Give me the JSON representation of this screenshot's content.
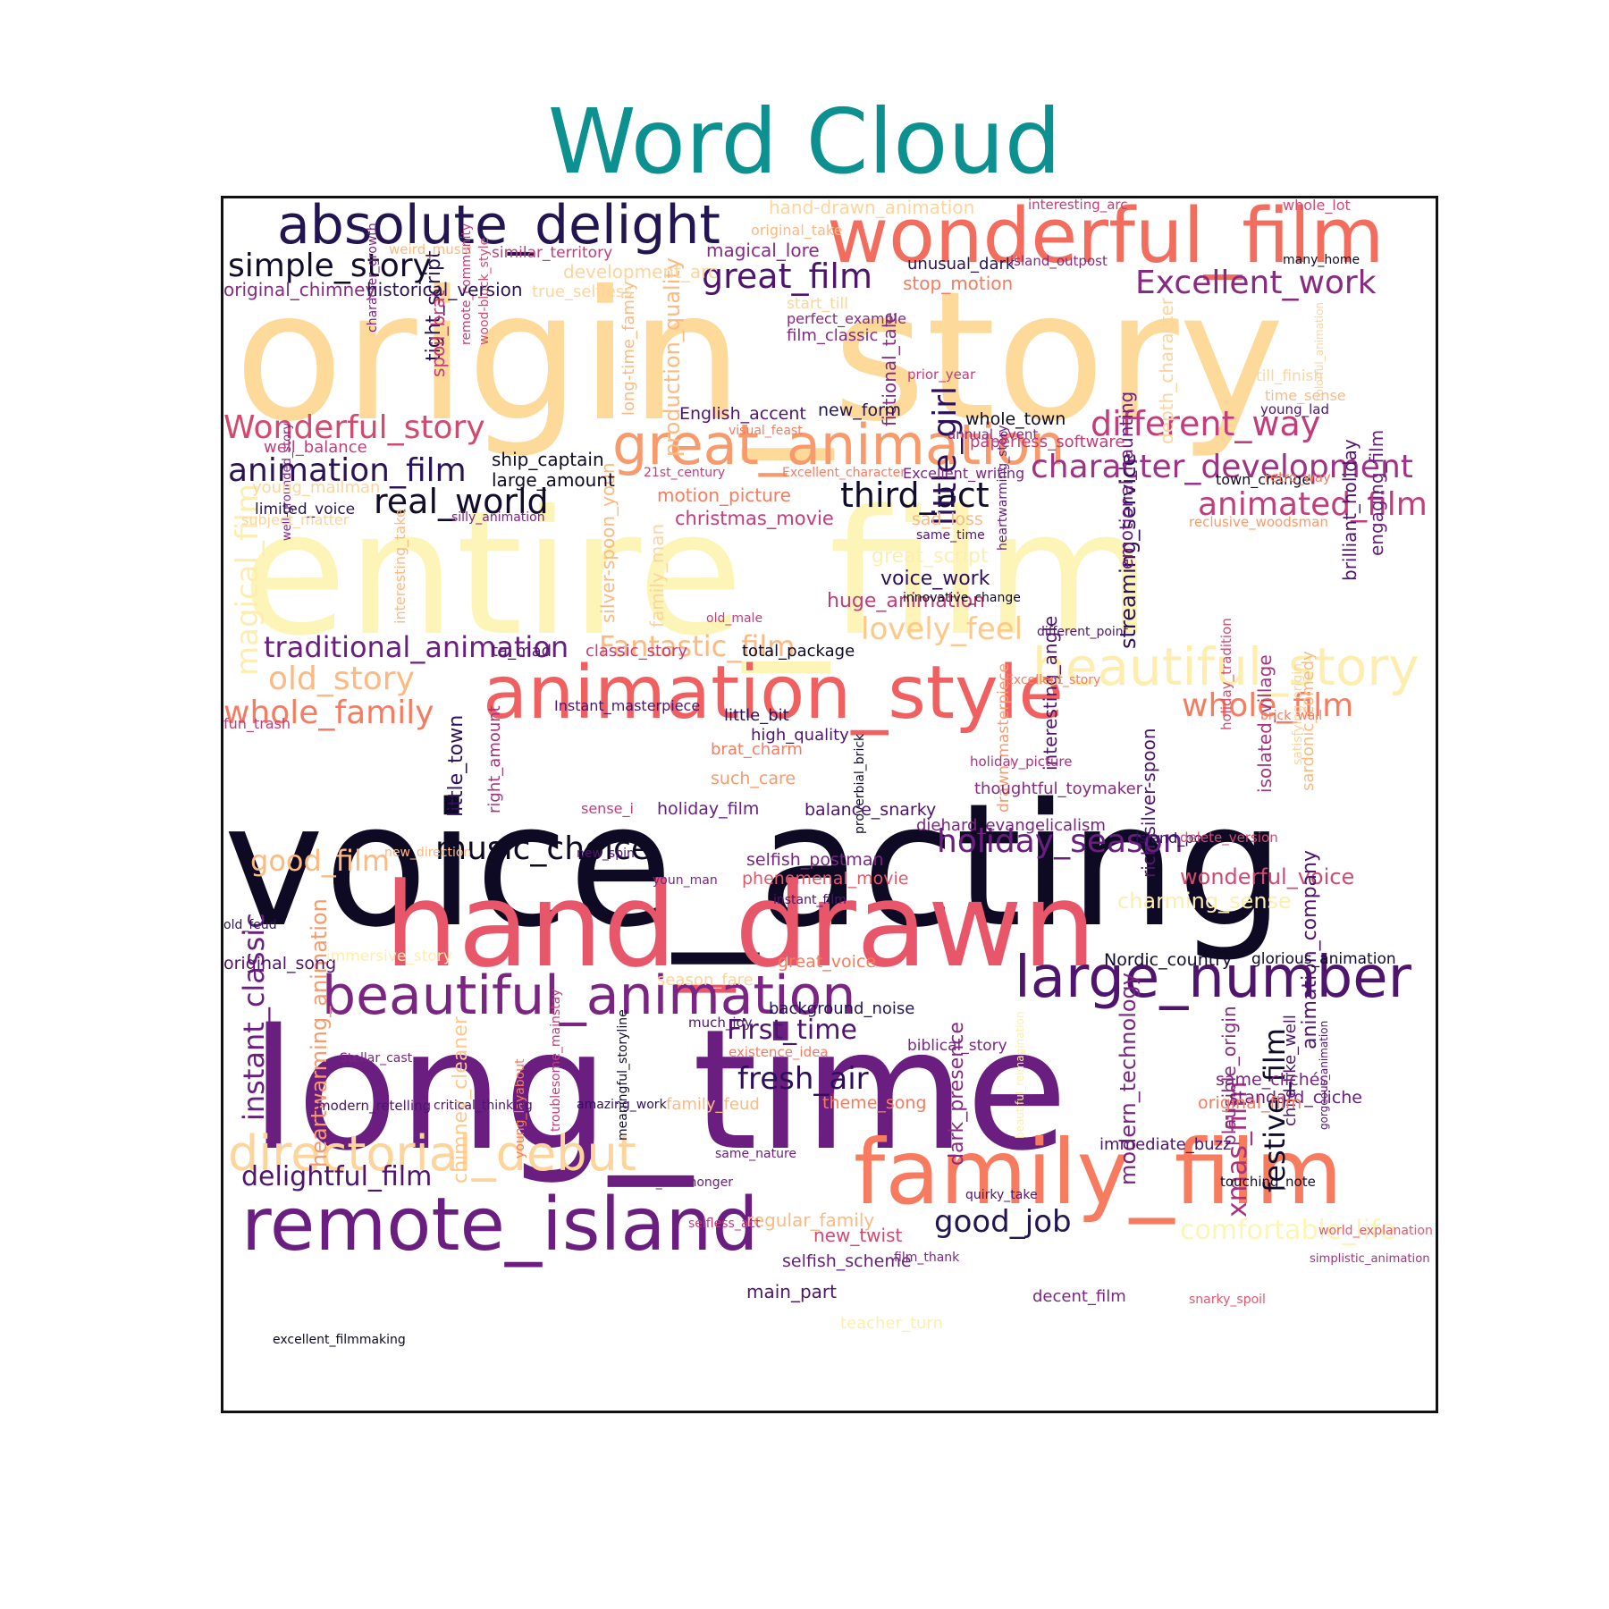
{
  "title": "Word Cloud",
  "palette": {
    "title_color": "#0c9090",
    "frame_color": "#111111"
  },
  "words": [
    {
      "text": "origin_story",
      "weight": 1.0,
      "color": "#fdd99a"
    },
    {
      "text": "entire_film",
      "weight": 0.97,
      "color": "#fcf5b7"
    },
    {
      "text": "voice_acting",
      "weight": 0.95,
      "color": "#0e0a23"
    },
    {
      "text": "long_time",
      "weight": 0.93,
      "color": "#6a1f80"
    },
    {
      "text": "hand_drawn",
      "weight": 0.72,
      "color": "#e8566a"
    },
    {
      "text": "family_film",
      "weight": 0.55,
      "color": "#f77b5e"
    },
    {
      "text": "wonderful_film",
      "weight": 0.52,
      "color": "#f26d5d"
    },
    {
      "text": "animation_style",
      "weight": 0.48,
      "color": "#f06060"
    },
    {
      "text": "remote_island",
      "weight": 0.5,
      "color": "#6a1f80"
    },
    {
      "text": "large_number",
      "weight": 0.46,
      "color": "#4f146e"
    },
    {
      "text": "beautiful_animation",
      "weight": 0.44,
      "color": "#7a2582"
    },
    {
      "text": "absolute_delight",
      "weight": 0.44,
      "color": "#231551"
    },
    {
      "text": "great_animation",
      "weight": 0.43,
      "color": "#f89a6c"
    },
    {
      "text": "beautiful_story",
      "weight": 0.42,
      "color": "#fdeeb0"
    },
    {
      "text": "directorial_debut",
      "weight": 0.4,
      "color": "#fdd499"
    },
    {
      "text": "simple_story",
      "weight": 0.3,
      "color": "#120c2b"
    },
    {
      "text": "Wonderful_story",
      "weight": 0.3,
      "color": "#d24a6e"
    },
    {
      "text": "Excellent_work",
      "weight": 0.29,
      "color": "#872a81"
    },
    {
      "text": "different_way",
      "weight": 0.3,
      "color": "#c23d7a"
    },
    {
      "text": "character_development",
      "weight": 0.31,
      "color": "#9e3285"
    },
    {
      "text": "animated_film",
      "weight": 0.29,
      "color": "#c23d7a"
    },
    {
      "text": "animation_film",
      "weight": 0.29,
      "color": "#2a1454"
    },
    {
      "text": "real_world",
      "weight": 0.3,
      "color": "#110c2c"
    },
    {
      "text": "third_act",
      "weight": 0.3,
      "color": "#110c2c"
    },
    {
      "text": "great_film",
      "weight": 0.3,
      "color": "#4f146e"
    },
    {
      "text": "little_girl",
      "weight": 0.3,
      "color": "#2e0f5c"
    },
    {
      "text": "lovely_feel",
      "weight": 0.27,
      "color": "#fdc88a"
    },
    {
      "text": "Fantastic_film",
      "weight": 0.25,
      "color": "#fcb981"
    },
    {
      "text": "traditional_animation",
      "weight": 0.26,
      "color": "#6a1f80"
    },
    {
      "text": "old_story",
      "weight": 0.28,
      "color": "#fcb981"
    },
    {
      "text": "whole_family",
      "weight": 0.28,
      "color": "#f77b5e"
    },
    {
      "text": "whole_film",
      "weight": 0.29,
      "color": "#f77b5e"
    },
    {
      "text": "music_choice",
      "weight": 0.28,
      "color": "#0e0a23"
    },
    {
      "text": "holiday_season",
      "weight": 0.28,
      "color": "#6a1f80"
    },
    {
      "text": "good_film",
      "weight": 0.25,
      "color": "#fcb981"
    },
    {
      "text": "instant_classic",
      "weight": 0.27,
      "color": "#6a1f80"
    },
    {
      "text": "festive_film",
      "weight": 0.26,
      "color": "#110c2c"
    },
    {
      "text": "xmas_film",
      "weight": 0.26,
      "color": "#a8327e"
    },
    {
      "text": "fresh_air",
      "weight": 0.28,
      "color": "#2e0f5c"
    },
    {
      "text": "First_time",
      "weight": 0.25,
      "color": "#4f146e"
    },
    {
      "text": "delightful_film",
      "weight": 0.25,
      "color": "#4f146e"
    },
    {
      "text": "good_job",
      "weight": 0.27,
      "color": "#231551"
    },
    {
      "text": "comfortable_life",
      "weight": 0.25,
      "color": "#fcf5b7"
    },
    {
      "text": "wonderful_voice",
      "weight": 0.2,
      "color": "#d24a6e"
    },
    {
      "text": "charming_sense",
      "weight": 0.2,
      "color": "#fdeeb0"
    },
    {
      "text": "magical_film",
      "weight": 0.27,
      "color": "#fdeeb0"
    },
    {
      "text": "production_quality",
      "weight": 0.2,
      "color": "#fcb981"
    },
    {
      "text": "streaming_service",
      "weight": 0.2,
      "color": "#2e0f5c"
    },
    {
      "text": "heartwarming_animation",
      "weight": 0.2,
      "color": "#f89a6c"
    },
    {
      "text": "modern_technology",
      "weight": 0.2,
      "color": "#7a2582"
    },
    {
      "text": "animation_company",
      "weight": 0.18,
      "color": "#4f146e"
    },
    {
      "text": "chimney_cleaner",
      "weight": 0.18,
      "color": "#fdc88a"
    },
    {
      "text": "plausible_origin",
      "weight": 0.18,
      "color": "#872a81"
    },
    {
      "text": "dark_presence",
      "weight": 0.17,
      "color": "#872a81"
    },
    {
      "text": "engaging_film",
      "weight": 0.17,
      "color": "#6a1f80"
    },
    {
      "text": "brilliant_holiday",
      "weight": 0.17,
      "color": "#4f146e"
    },
    {
      "text": "emotional_haunting",
      "weight": 0.15,
      "color": "#6a1f80"
    },
    {
      "text": "fictional_tale",
      "weight": 0.17,
      "color": "#872a81"
    },
    {
      "text": "long-time_family",
      "weight": 0.15,
      "color": "#fcb981"
    },
    {
      "text": "tight_script",
      "weight": 0.17,
      "color": "#2a1454"
    },
    {
      "text": "spoil_brat",
      "weight": 0.17,
      "color": "#c23d7a"
    },
    {
      "text": "depth_character",
      "weight": 0.15,
      "color": "#fdd49c"
    },
    {
      "text": "interesting_angle",
      "weight": 0.15,
      "color": "#4f146e"
    },
    {
      "text": "rich_silver-spoon",
      "weight": 0.15,
      "color": "#4f146e"
    },
    {
      "text": "isolated_village",
      "weight": 0.15,
      "color": "#a8327e"
    },
    {
      "text": "sardonic_comedy",
      "weight": 0.15,
      "color": "#fcb981"
    },
    {
      "text": "silver-spoon_youn",
      "weight": 0.15,
      "color": "#fcb981"
    },
    {
      "text": "family_man",
      "weight": 0.15,
      "color": "#fdd49c"
    },
    {
      "text": "interesting_take",
      "weight": 0.13,
      "color": "#fcb981"
    },
    {
      "text": "little_town",
      "weight": 0.15,
      "color": "#2e0f5c"
    },
    {
      "text": "right_amount",
      "weight": 0.13,
      "color": "#a8327e"
    },
    {
      "text": "drawn_masterpiece",
      "weight": 0.13,
      "color": "#f89a6c"
    },
    {
      "text": "heartwarming_story",
      "weight": 0.12,
      "color": "#6a1f80"
    },
    {
      "text": "holiday_tradition",
      "weight": 0.11,
      "color": "#d24a6e"
    },
    {
      "text": "troublesome_mainstay",
      "weight": 0.12,
      "color": "#c23d7a"
    },
    {
      "text": "meaningful_storyline",
      "weight": 0.12,
      "color": "#110c2c"
    },
    {
      "text": "young_layabout",
      "weight": 0.12,
      "color": "#f77b5e"
    },
    {
      "text": "child-like_well",
      "weight": 0.13,
      "color": "#4f146e"
    },
    {
      "text": "gorgeous_animation",
      "weight": 0.1,
      "color": "#4f146e"
    },
    {
      "text": "beautiful_reimagination",
      "weight": 0.1,
      "color": "#fdeeb0"
    },
    {
      "text": "character_growth",
      "weight": 0.1,
      "color": "#7a2582"
    },
    {
      "text": "remote_community",
      "weight": 0.1,
      "color": "#c23d7a"
    },
    {
      "text": "wood-block_style",
      "weight": 0.1,
      "color": "#d24a6e"
    },
    {
      "text": "well-grounded_story",
      "weight": 0.1,
      "color": "#7a2582"
    },
    {
      "text": "proverbial_brick",
      "weight": 0.1,
      "color": "#110c2c"
    },
    {
      "text": "satisfying_origin",
      "weight": 0.1,
      "color": "#fdd49c"
    },
    {
      "text": "colorful_animation",
      "weight": 0.1,
      "color": "#fdd49c"
    },
    {
      "text": "hand-drawn_animation",
      "weight": 0.14,
      "color": "#fdd49c"
    },
    {
      "text": "interesting_arc",
      "weight": 0.1,
      "color": "#c23d7a"
    },
    {
      "text": "whole_lot",
      "weight": 0.12,
      "color": "#d24a6e"
    },
    {
      "text": "many_home",
      "weight": 0.1,
      "color": "#0e0a23"
    },
    {
      "text": "original_take",
      "weight": 0.11,
      "color": "#fcb981"
    },
    {
      "text": "weird_music",
      "weight": 0.11,
      "color": "#fcb981"
    },
    {
      "text": "similar_territory",
      "weight": 0.12,
      "color": "#c23d7a"
    },
    {
      "text": "magical_lore",
      "weight": 0.15,
      "color": "#872a81"
    },
    {
      "text": "development_arc",
      "weight": 0.14,
      "color": "#fdd49c"
    },
    {
      "text": "unusual_dark",
      "weight": 0.14,
      "color": "#2a1454"
    },
    {
      "text": "island_outpost",
      "weight": 0.11,
      "color": "#872a81"
    },
    {
      "text": "stop_motion",
      "weight": 0.15,
      "color": "#f77b5e"
    },
    {
      "text": "original_chimney",
      "weight": 0.14,
      "color": "#872a81"
    },
    {
      "text": "historical_version",
      "weight": 0.14,
      "color": "#2a1454"
    },
    {
      "text": "true_selfless",
      "weight": 0.14,
      "color": "#fdd49c"
    },
    {
      "text": "start_till",
      "weight": 0.11,
      "color": "#fdd49c"
    },
    {
      "text": "perfect_example",
      "weight": 0.11,
      "color": "#872a81"
    },
    {
      "text": "film_classic",
      "weight": 0.12,
      "color": "#872a81"
    },
    {
      "text": "prior_year",
      "weight": 0.11,
      "color": "#c23d7a"
    },
    {
      "text": "till_finish",
      "weight": 0.12,
      "color": "#fdd49c"
    },
    {
      "text": "time_sense",
      "weight": 0.11,
      "color": "#fcb981"
    },
    {
      "text": "young_lad",
      "weight": 0.11,
      "color": "#4f146e"
    },
    {
      "text": "English_accent",
      "weight": 0.14,
      "color": "#4f146e"
    },
    {
      "text": "new_form",
      "weight": 0.14,
      "color": "#231551"
    },
    {
      "text": "visual_feast",
      "weight": 0.11,
      "color": "#f77b5e"
    },
    {
      "text": "whole_town",
      "weight": 0.14,
      "color": "#0e0a23"
    },
    {
      "text": "annual_event",
      "weight": 0.11,
      "color": "#872a81"
    },
    {
      "text": "well_balance",
      "weight": 0.13,
      "color": "#c23d7a"
    },
    {
      "text": "ship_captain",
      "weight": 0.14,
      "color": "#0e0a23"
    },
    {
      "text": "large_amount",
      "weight": 0.14,
      "color": "#0e0a23"
    },
    {
      "text": "paperless_software",
      "weight": 0.13,
      "color": "#c23d7a"
    },
    {
      "text": "21st_century",
      "weight": 0.1,
      "color": "#c23d7a"
    },
    {
      "text": "Excellent_character",
      "weight": 0.1,
      "color": "#f77b5e"
    },
    {
      "text": "Excellent_writing",
      "weight": 0.11,
      "color": "#7a2582"
    },
    {
      "text": "town_change",
      "weight": 0.14,
      "color": "#0e0a23"
    },
    {
      "text": "retro_way",
      "weight": 0.11,
      "color": "#f77b5e"
    },
    {
      "text": "young_mailman",
      "weight": 0.11,
      "color": "#fdd49c"
    },
    {
      "text": "limited_voice",
      "weight": 0.13,
      "color": "#231551"
    },
    {
      "text": "silly_animation",
      "weight": 0.1,
      "color": "#7a2582"
    },
    {
      "text": "subject_matter",
      "weight": 0.11,
      "color": "#fdd49c"
    },
    {
      "text": "motion_picture",
      "weight": 0.14,
      "color": "#f77b5e"
    },
    {
      "text": "christmas_movie",
      "weight": 0.15,
      "color": "#c23d7a"
    },
    {
      "text": "reclusive_woodsman",
      "weight": 0.11,
      "color": "#f89a6c"
    },
    {
      "text": "sad_loss",
      "weight": 0.14,
      "color": "#fcb981"
    },
    {
      "text": "same_time",
      "weight": 0.1,
      "color": "#4f146e"
    },
    {
      "text": "great_script",
      "weight": 0.16,
      "color": "#fdeeb0"
    },
    {
      "text": "voice_work",
      "weight": 0.16,
      "color": "#2e0f5c"
    },
    {
      "text": "huge_animation",
      "weight": 0.16,
      "color": "#c23d7a"
    },
    {
      "text": "innovative_change",
      "weight": 0.1,
      "color": "#0e0a23"
    },
    {
      "text": "old_male",
      "weight": 0.1,
      "color": "#c23d7a"
    },
    {
      "text": "different_point",
      "weight": 0.1,
      "color": "#4f146e"
    },
    {
      "text": "ta_mad",
      "weight": 0.13,
      "color": "#4f146e"
    },
    {
      "text": "classic_story",
      "weight": 0.13,
      "color": "#c23d7a"
    },
    {
      "text": "total_package",
      "weight": 0.13,
      "color": "#0e0a23"
    },
    {
      "text": "Excellent_story",
      "weight": 0.1,
      "color": "#f77b5e"
    },
    {
      "text": "fun_trash",
      "weight": 0.1,
      "color": "#c23d7a"
    },
    {
      "text": "Instant_masterpiece",
      "weight": 0.13,
      "color": "#4f146e"
    },
    {
      "text": "little_bit",
      "weight": 0.13,
      "color": "#2e0f5c"
    },
    {
      "text": "brick_wall",
      "weight": 0.1,
      "color": "#f77b5e"
    },
    {
      "text": "high_quality",
      "weight": 0.1,
      "color": "#4f146e"
    },
    {
      "text": "brat_charm",
      "weight": 0.14,
      "color": "#f77b5e"
    },
    {
      "text": "holiday_picture",
      "weight": 0.14,
      "color": "#a8327e"
    },
    {
      "text": "such_care",
      "weight": 0.11,
      "color": "#f89a6c"
    },
    {
      "text": "thoughtful_toymaker",
      "weight": 0.14,
      "color": "#872a81"
    },
    {
      "text": "holiday_film",
      "weight": 0.14,
      "color": "#6a1f80"
    },
    {
      "text": "sense_i",
      "weight": 0.1,
      "color": "#c23d7a"
    },
    {
      "text": "balance_snarky",
      "weight": 0.13,
      "color": "#4f146e"
    },
    {
      "text": "diehard_evangelicalism",
      "weight": 0.13,
      "color": "#7a2582"
    },
    {
      "text": "island_port",
      "weight": 0.14,
      "color": "#2e0f5c"
    },
    {
      "text": "delete_version",
      "weight": 0.13,
      "color": "#d24a6e"
    },
    {
      "text": "new_direction",
      "weight": 0.13,
      "color": "#fcb981"
    },
    {
      "text": "new_spin",
      "weight": 0.11,
      "color": "#4f146e"
    },
    {
      "text": "selfish_postman",
      "weight": 0.11,
      "color": "#7a2582"
    },
    {
      "text": "phenomenal_movie",
      "weight": 0.11,
      "color": "#e8566a"
    },
    {
      "text": "youn_man",
      "weight": 0.13,
      "color": "#7a2582"
    },
    {
      "text": "instant_film",
      "weight": 0.11,
      "color": "#4f146e"
    },
    {
      "text": "old_feud",
      "weight": 0.14,
      "color": "#2a1454"
    },
    {
      "text": "original_song",
      "weight": 0.1,
      "color": "#4f146e"
    },
    {
      "text": "immersive_story",
      "weight": 0.1,
      "color": "#fdeeb0"
    },
    {
      "text": "great_voice",
      "weight": 0.1,
      "color": "#f77b5e"
    },
    {
      "text": "Nordic_country",
      "weight": 0.14,
      "color": "#110c2c"
    },
    {
      "text": "glorious_animation",
      "weight": 0.1,
      "color": "#110c2c"
    },
    {
      "text": "season_fare",
      "weight": 0.13,
      "color": "#fdd49c"
    },
    {
      "text": "background_noise",
      "weight": 0.16,
      "color": "#231551"
    },
    {
      "text": "much_joy",
      "weight": 0.1,
      "color": "#4f146e"
    },
    {
      "text": "existence_idea",
      "weight": 0.14,
      "color": "#f77b5e"
    },
    {
      "text": "Stellar_cast",
      "weight": 0.14,
      "color": "#7a2582"
    },
    {
      "text": "biblical_story",
      "weight": 0.14,
      "color": "#7a2582"
    },
    {
      "text": "same_clichés",
      "weight": 0.11,
      "color": "#7a2582"
    },
    {
      "text": "standard_cliche",
      "weight": 0.1,
      "color": "#6a1f80"
    },
    {
      "text": "modern_retelling",
      "weight": 0.1,
      "color": "#4f146e"
    },
    {
      "text": "critical_thinking",
      "weight": 0.14,
      "color": "#4f146e"
    },
    {
      "text": "amazing_work",
      "weight": 0.14,
      "color": "#2e0f5c"
    },
    {
      "text": "family_feud",
      "weight": 0.14,
      "color": "#fcb981"
    },
    {
      "text": "theme_song",
      "weight": 0.14,
      "color": "#f77b5e"
    },
    {
      "text": "original_film",
      "weight": 0.11,
      "color": "#f77b5e"
    },
    {
      "text": "immediate_buzz",
      "weight": 0.1,
      "color": "#4f146e"
    },
    {
      "text": "touching_note",
      "weight": 0.1,
      "color": "#110c2c"
    },
    {
      "text": "same_nature",
      "weight": 0.14,
      "color": "#6a1f80"
    },
    {
      "text": "turn_fishmonger",
      "weight": 0.14,
      "color": "#6a1f80"
    },
    {
      "text": "regular_family",
      "weight": 0.14,
      "color": "#fcb981"
    },
    {
      "text": "quirky_take",
      "weight": 0.14,
      "color": "#4f146e"
    },
    {
      "text": "selfless_act",
      "weight": 0.13,
      "color": "#c23d7a"
    },
    {
      "text": "new_twist",
      "weight": 0.14,
      "color": "#d24a6e"
    },
    {
      "text": "selfish_scheme",
      "weight": 0.14,
      "color": "#6a1f80"
    },
    {
      "text": "film_thank",
      "weight": 0.1,
      "color": "#7a2582"
    },
    {
      "text": "main_part",
      "weight": 0.11,
      "color": "#4f146e"
    },
    {
      "text": "decent_film",
      "weight": 0.1,
      "color": "#7a2582"
    },
    {
      "text": "snarky_spoil",
      "weight": 0.13,
      "color": "#e8566a"
    },
    {
      "text": "simplistic_animation",
      "weight": 0.11,
      "color": "#a8327e"
    },
    {
      "text": "world_explanation",
      "weight": 0.11,
      "color": "#e8566a"
    },
    {
      "text": "teacher_turn",
      "weight": 0.12,
      "color": "#fdeeb0"
    },
    {
      "text": "excellent_filmmaking",
      "weight": 0.1,
      "color": "#0e0a23"
    }
  ]
}
